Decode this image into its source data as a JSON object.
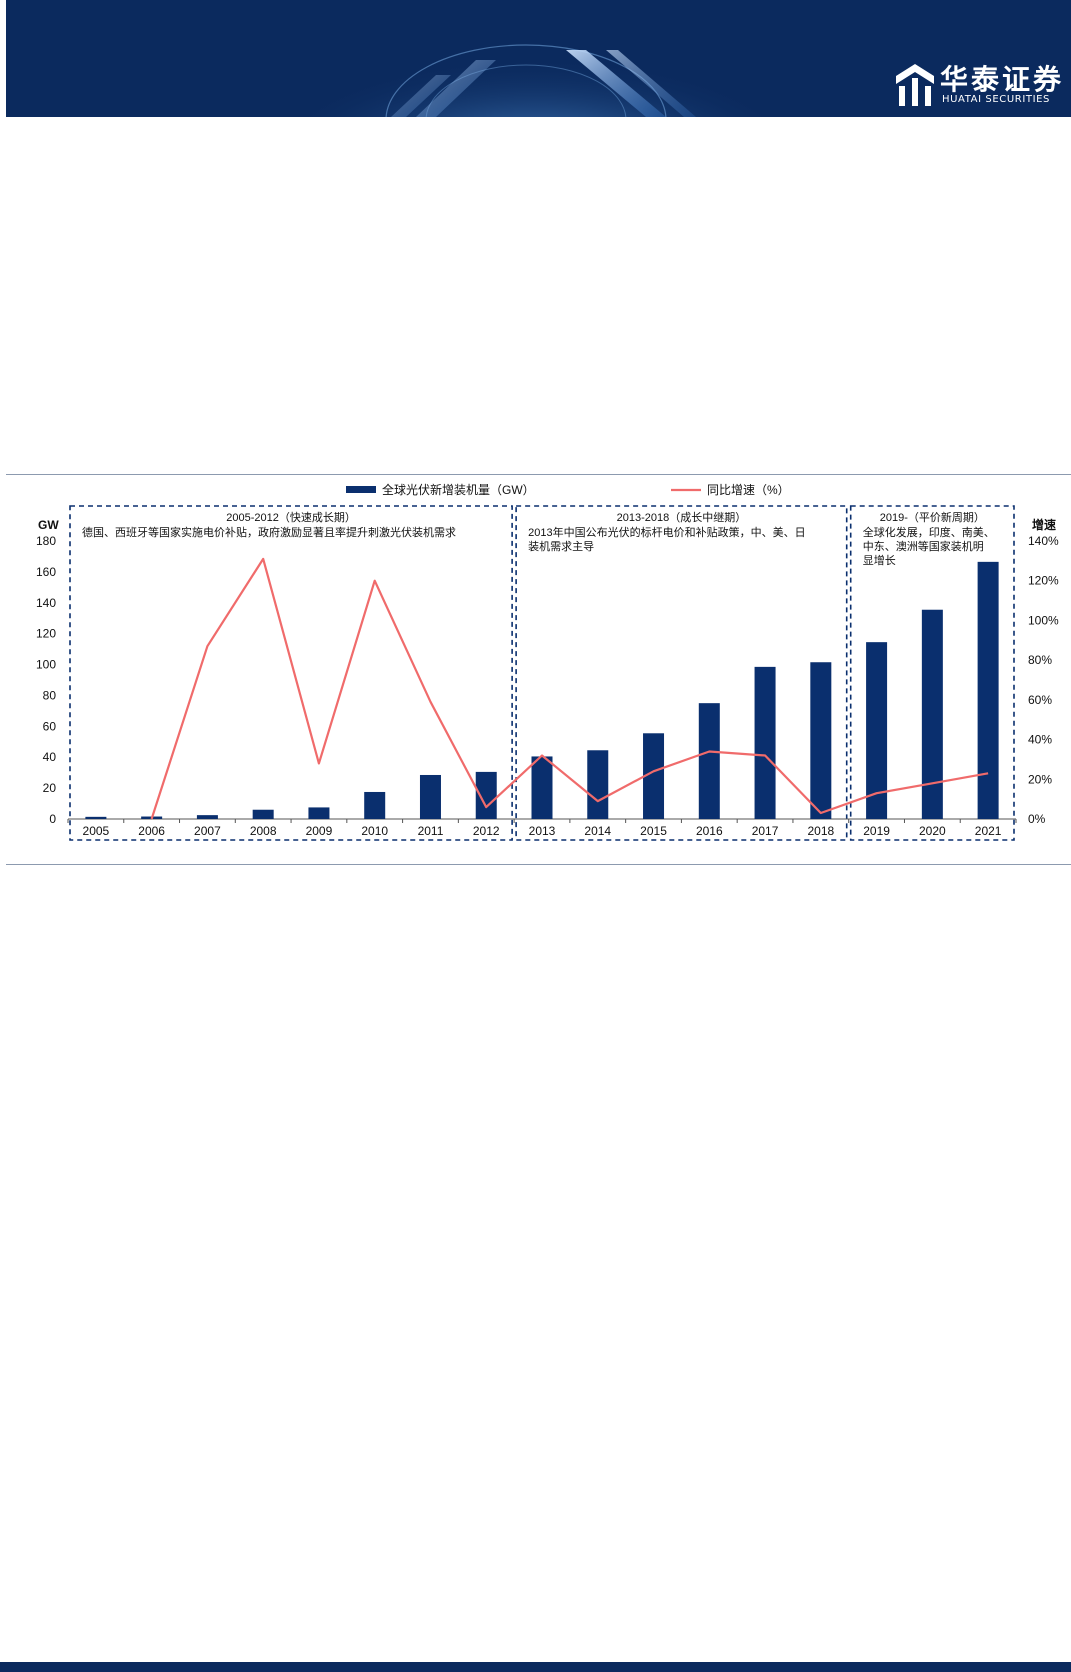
{
  "header": {
    "brand_name_cn": "华泰证券",
    "brand_name_en": "HUATAI SECURITIES",
    "banner_color": "#0b2a5e"
  },
  "chart_data": {
    "type": "bar",
    "categories": [
      "2005",
      "2006",
      "2007",
      "2008",
      "2009",
      "2010",
      "2011",
      "2012",
      "2013",
      "2014",
      "2015",
      "2016",
      "2017",
      "2018",
      "2019",
      "2020",
      "2021"
    ],
    "series": [
      {
        "name": "全球光伏新增装机量（GW）",
        "kind": "bar",
        "axis": "left",
        "color": "#0a2f6e",
        "values": [
          1.4,
          1.6,
          2.5,
          6.0,
          7.5,
          17.5,
          28.5,
          30.5,
          40.5,
          44.5,
          55.5,
          75.0,
          98.5,
          101.5,
          114.5,
          135.5,
          166.5
        ]
      },
      {
        "name": "同比增速（%）",
        "kind": "line",
        "axis": "right",
        "color": "#f06b6b",
        "values": [
          null,
          0,
          87,
          131,
          28,
          120,
          59,
          6,
          32,
          9,
          24,
          34,
          32,
          3,
          13,
          18,
          23
        ]
      }
    ],
    "y_left": {
      "label": "GW",
      "min": 0,
      "max": 180,
      "ticks": [
        "0",
        "20",
        "40",
        "60",
        "80",
        "100",
        "120",
        "140",
        "160",
        "180"
      ]
    },
    "y_right": {
      "label": "增速",
      "min": 0,
      "max": 140,
      "ticks": [
        "0%",
        "20%",
        "40%",
        "60%",
        "80%",
        "100%",
        "120%",
        "140%"
      ]
    },
    "grid": false,
    "legend_position": "top-center",
    "periods": [
      {
        "title": "2005-2012（快速成长期）",
        "lines": [
          "德国、西班牙等国家实施电价补贴，政府激励显著且率提升刺激光伏装机需求"
        ],
        "from": 0,
        "to": 7
      },
      {
        "title": "2013-2018（成长中继期）",
        "lines": [
          "2013年中国公布光伏的标杆电价和补贴政策，中、美、日",
          "装机需求主导"
        ],
        "from": 8,
        "to": 13
      },
      {
        "title": "2019-（平价新周期）",
        "lines": [
          "全球化发展，印度、南美、",
          "中东、澳洲等国家装机明",
          "显增长"
        ],
        "from": 14,
        "to": 16
      }
    ]
  }
}
